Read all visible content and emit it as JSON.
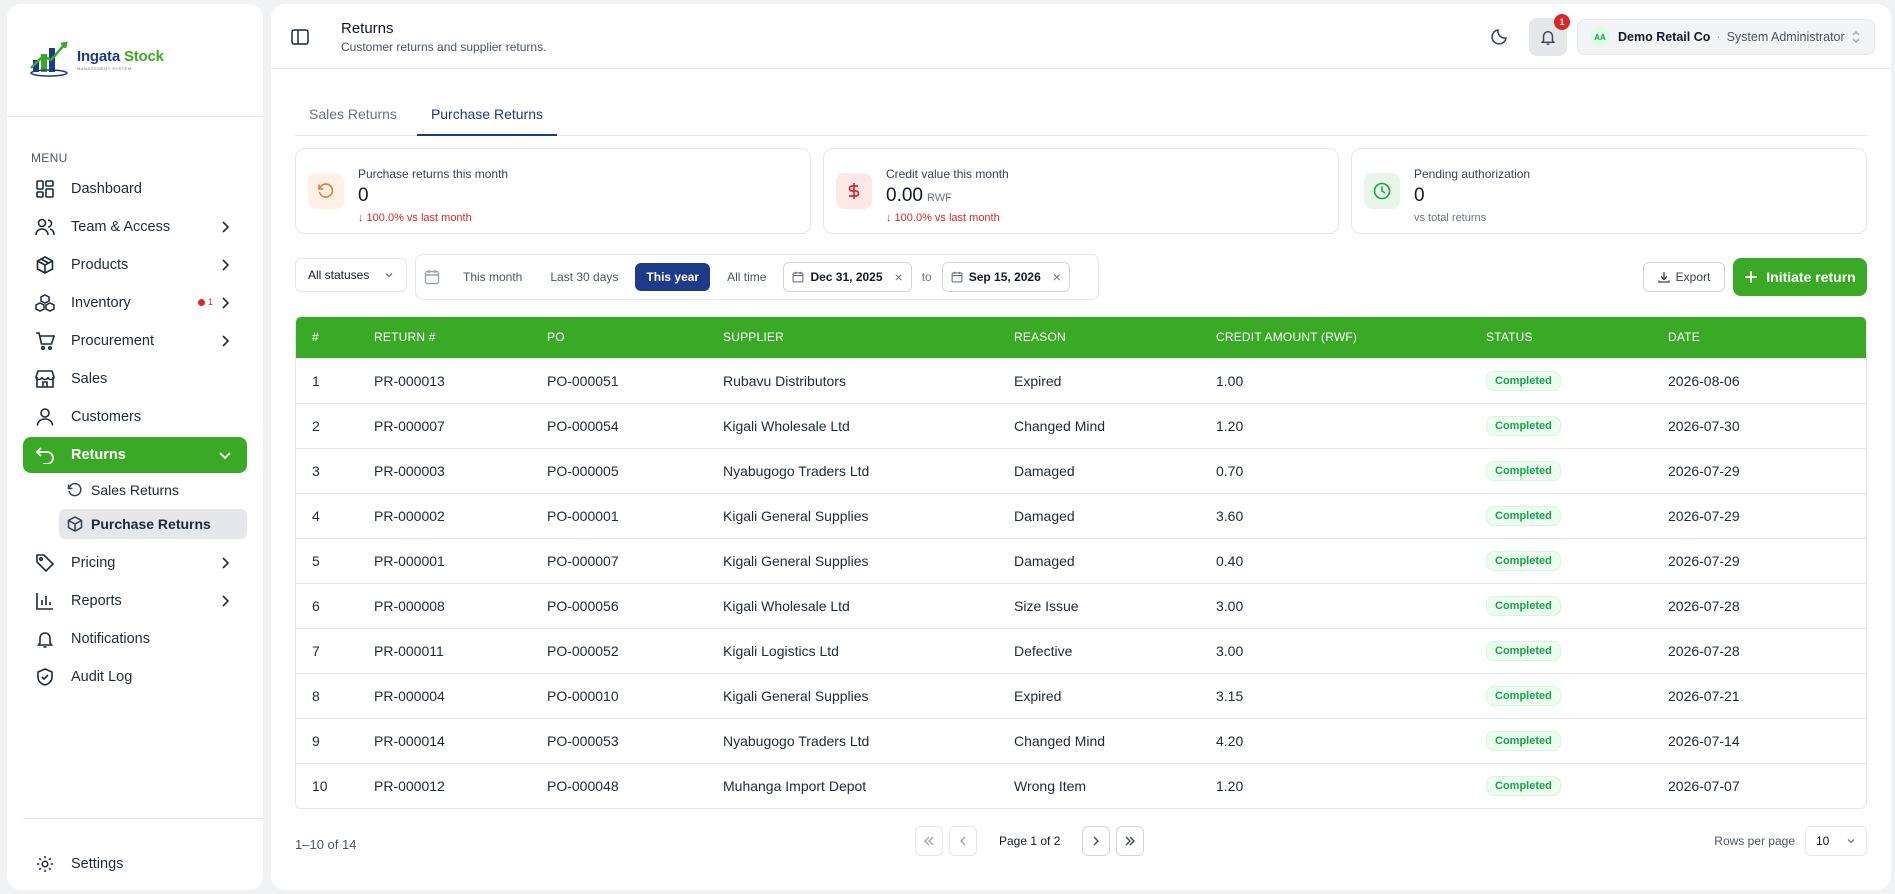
{
  "app": {
    "logo_name_part1": "Ingata",
    "logo_name_part2": "Stock",
    "logo_sub": "MANAGEMENT SYSTEM"
  },
  "sidebar": {
    "menu_label": "MENU",
    "items": [
      {
        "label": "Dashboard",
        "icon": "dashboard-icon"
      },
      {
        "label": "Team & Access",
        "icon": "users-icon"
      },
      {
        "label": "Products",
        "icon": "package-icon"
      },
      {
        "label": "Inventory",
        "icon": "boxes-icon",
        "badge": "1"
      },
      {
        "label": "Procurement",
        "icon": "cart-icon"
      },
      {
        "label": "Sales",
        "icon": "store-icon"
      },
      {
        "label": "Customers",
        "icon": "user-icon"
      },
      {
        "label": "Returns",
        "icon": "undo-icon"
      },
      {
        "label": "Pricing",
        "icon": "tag-icon"
      },
      {
        "label": "Reports",
        "icon": "bar-chart-icon"
      },
      {
        "label": "Notifications",
        "icon": "bell-icon"
      },
      {
        "label": "Audit Log",
        "icon": "shield-icon"
      }
    ],
    "returns_sub": [
      {
        "label": "Sales Returns"
      },
      {
        "label": "Purchase Returns"
      }
    ],
    "settings_label": "Settings"
  },
  "header": {
    "title": "Returns",
    "subtitle": "Customer returns and supplier returns.",
    "notification_count": "1",
    "account_initials": "AA",
    "account_org": "Demo Retail Co",
    "account_sep": "·",
    "account_role": "System Administrator"
  },
  "tabs": [
    {
      "label": "Sales Returns"
    },
    {
      "label": "Purchase Returns"
    }
  ],
  "cards": [
    {
      "label": "Purchase returns this month",
      "value": "0",
      "unit": "",
      "delta": "↓ 100.0% vs last month"
    },
    {
      "label": "Credit value this month",
      "value": "0.00",
      "unit": "RWF",
      "delta": "↓ 100.0% vs last month"
    },
    {
      "label": "Pending authorization",
      "value": "0",
      "unit": "",
      "delta": "vs total returns"
    }
  ],
  "filters": {
    "status": "All statuses",
    "ranges": [
      "This month",
      "Last 30 days",
      "This year",
      "All time"
    ],
    "active_range": "This year",
    "date_from": "Dec 31, 2025",
    "to_label": "to",
    "date_to": "Sep 15, 2026",
    "export_label": "Export",
    "initiate_label": "Initiate return"
  },
  "table": {
    "columns": [
      "#",
      "RETURN #",
      "PO",
      "SUPPLIER",
      "REASON",
      "CREDIT AMOUNT (RWF)",
      "STATUS",
      "DATE"
    ],
    "rows": [
      [
        "1",
        "PR-000013",
        "PO-000051",
        "Rubavu Distributors",
        "Expired",
        "1.00",
        "Completed",
        "2026-08-06"
      ],
      [
        "2",
        "PR-000007",
        "PO-000054",
        "Kigali Wholesale Ltd",
        "Changed Mind",
        "1.20",
        "Completed",
        "2026-07-30"
      ],
      [
        "3",
        "PR-000003",
        "PO-000005",
        "Nyabugogo Traders Ltd",
        "Damaged",
        "0.70",
        "Completed",
        "2026-07-29"
      ],
      [
        "4",
        "PR-000002",
        "PO-000001",
        "Kigali General Supplies",
        "Damaged",
        "3.60",
        "Completed",
        "2026-07-29"
      ],
      [
        "5",
        "PR-000001",
        "PO-000007",
        "Kigali General Supplies",
        "Damaged",
        "0.40",
        "Completed",
        "2026-07-29"
      ],
      [
        "6",
        "PR-000008",
        "PO-000056",
        "Kigali Wholesale Ltd",
        "Size Issue",
        "3.00",
        "Completed",
        "2026-07-28"
      ],
      [
        "7",
        "PR-000011",
        "PO-000052",
        "Kigali Logistics Ltd",
        "Defective",
        "3.00",
        "Completed",
        "2026-07-28"
      ],
      [
        "8",
        "PR-000004",
        "PO-000010",
        "Kigali General Supplies",
        "Expired",
        "3.15",
        "Completed",
        "2026-07-21"
      ],
      [
        "9",
        "PR-000014",
        "PO-000053",
        "Nyabugogo Traders Ltd",
        "Changed Mind",
        "4.20",
        "Completed",
        "2026-07-14"
      ],
      [
        "10",
        "PR-000012",
        "PO-000048",
        "Muhanga Import Depot",
        "Wrong Item",
        "1.20",
        "Completed",
        "2026-07-07"
      ]
    ]
  },
  "footer": {
    "count": "1–10 of 14",
    "page_text": "Page 1 of 2",
    "rows_label": "Rows per page",
    "rows_value": "10"
  },
  "colors": {
    "brand_green": "#3aaa26",
    "brand_navy": "#1e3a8a",
    "danger": "#dc2626"
  }
}
